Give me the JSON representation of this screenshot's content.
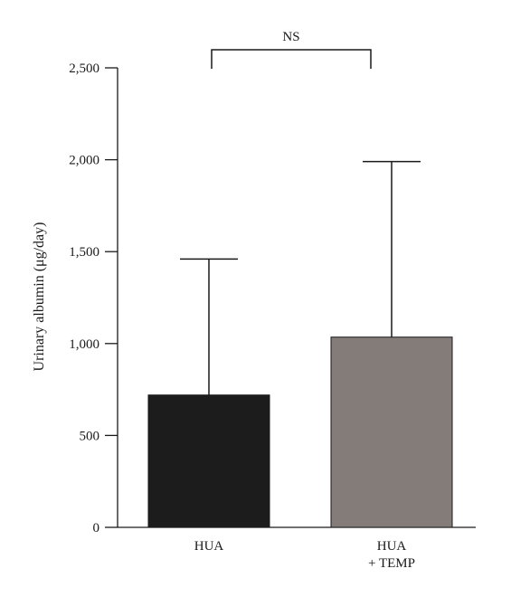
{
  "chart_data": {
    "type": "bar",
    "title": "",
    "xlabel": "",
    "ylabel": "Urinary albumin (μg/day)",
    "ylim": [
      0,
      2500
    ],
    "yticks": [
      0,
      500,
      1000,
      1500,
      2000,
      2500
    ],
    "ytick_labels": [
      "0",
      "500",
      "1,000",
      "1,500",
      "2,000",
      "2,500"
    ],
    "categories": [
      [
        "HUA"
      ],
      [
        "HUA",
        "+ TEMP"
      ]
    ],
    "values": [
      720,
      1035
    ],
    "error_upper": [
      1460,
      1990
    ],
    "bar_colors": [
      "#1c1c1c",
      "#837c78"
    ],
    "annotation": {
      "text": "NS",
      "between": [
        0,
        1
      ]
    },
    "grid": false,
    "legend": "none"
  }
}
